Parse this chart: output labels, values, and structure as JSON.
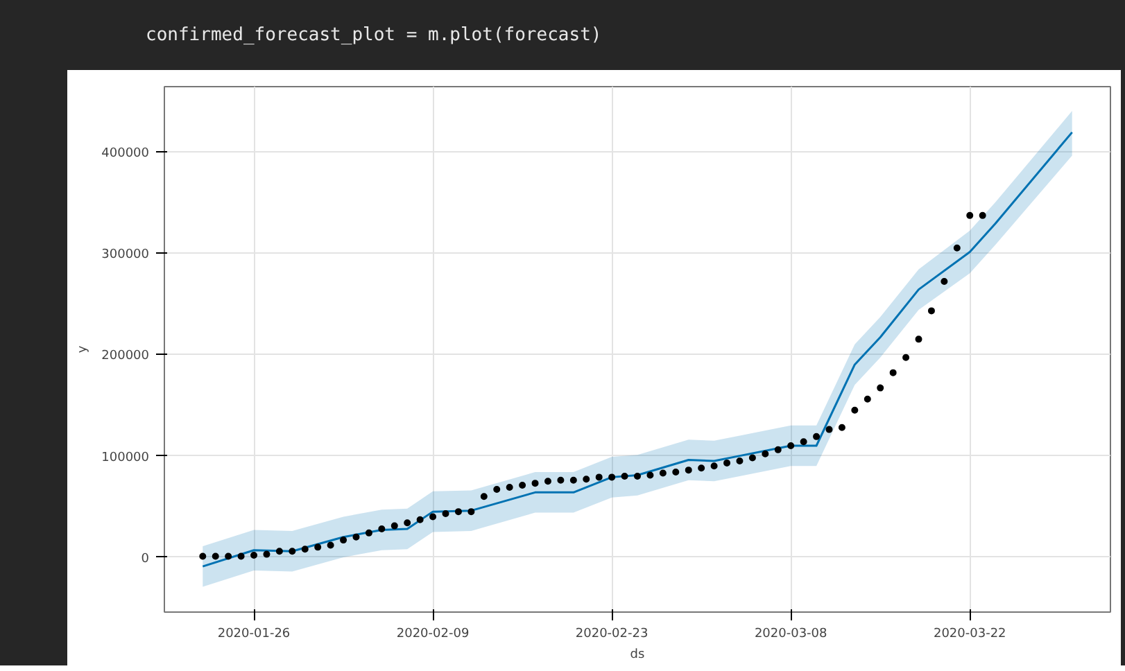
{
  "chart_data": {
    "type": "scatter",
    "annotations": [
      "confirmed_forecast_plot = m.plot(forecast)"
    ],
    "xlabel": "ds",
    "ylabel": "y",
    "xlim": [
      "2020-01-19",
      "2020-04-02"
    ],
    "ylim": [
      -54000,
      464000
    ],
    "xticks": [
      {
        "value": "2020-01-26",
        "label": "2020-01-26"
      },
      {
        "value": "2020-02-09",
        "label": "2020-02-09"
      },
      {
        "value": "2020-02-23",
        "label": "2020-02-23"
      },
      {
        "value": "2020-03-08",
        "label": "2020-03-08"
      },
      {
        "value": "2020-03-22",
        "label": "2020-03-22"
      }
    ],
    "yticks": [
      0,
      100000,
      200000,
      300000,
      400000
    ],
    "grid": true,
    "series": [
      {
        "type": "line",
        "color": "#0072b2",
        "marker": "none",
        "line_style": "solid",
        "x": [
          "2020-01-22",
          "2020-01-26",
          "2020-01-29",
          "2020-02-02",
          "2020-02-05",
          "2020-02-07",
          "2020-02-09",
          "2020-02-12",
          "2020-02-17",
          "2020-02-20",
          "2020-02-23",
          "2020-02-25",
          "2020-02-29",
          "2020-03-02",
          "2020-03-04",
          "2020-03-08",
          "2020-03-10",
          "2020-03-13",
          "2020-03-15",
          "2020-03-18",
          "2020-03-22",
          "2020-03-24",
          "2020-03-30"
        ],
        "values": [
          -9000,
          7000,
          6000,
          20000,
          27000,
          28000,
          45000,
          46000,
          64000,
          64000,
          79000,
          81000,
          96000,
          95000,
          100000,
          110000,
          110000,
          190000,
          217000,
          264000,
          301000,
          329000,
          419000
        ],
        "lower": [
          -29000,
          -13000,
          -14000,
          0,
          7000,
          8000,
          25000,
          26000,
          44000,
          44000,
          59000,
          61000,
          76000,
          75000,
          80000,
          90000,
          90000,
          170000,
          197000,
          244000,
          280000,
          308000,
          396000
        ],
        "upper": [
          11000,
          27000,
          26000,
          40000,
          47000,
          48000,
          65000,
          66000,
          84000,
          84000,
          99000,
          101000,
          116000,
          115000,
          120000,
          130000,
          130000,
          210000,
          237000,
          284000,
          322000,
          350000,
          440000
        ]
      },
      {
        "color": "#000000",
        "marker": "circle",
        "x": [
          "2020-01-22",
          "2020-01-23",
          "2020-01-24",
          "2020-01-25",
          "2020-01-26",
          "2020-01-27",
          "2020-01-28",
          "2020-01-29",
          "2020-01-30",
          "2020-01-31",
          "2020-02-01",
          "2020-02-02",
          "2020-02-03",
          "2020-02-04",
          "2020-02-05",
          "2020-02-06",
          "2020-02-07",
          "2020-02-08",
          "2020-02-09",
          "2020-02-10",
          "2020-02-11",
          "2020-02-12",
          "2020-02-13",
          "2020-02-14",
          "2020-02-15",
          "2020-02-16",
          "2020-02-17",
          "2020-02-18",
          "2020-02-19",
          "2020-02-20",
          "2020-02-21",
          "2020-02-22",
          "2020-02-23",
          "2020-02-24",
          "2020-02-25",
          "2020-02-26",
          "2020-02-27",
          "2020-02-28",
          "2020-02-29",
          "2020-03-01",
          "2020-03-02",
          "2020-03-03",
          "2020-03-04",
          "2020-03-05",
          "2020-03-06",
          "2020-03-07",
          "2020-03-08",
          "2020-03-09",
          "2020-03-10",
          "2020-03-11",
          "2020-03-12",
          "2020-03-13",
          "2020-03-14",
          "2020-03-15",
          "2020-03-16",
          "2020-03-17",
          "2020-03-18",
          "2020-03-19",
          "2020-03-20",
          "2020-03-21",
          "2020-03-22",
          "2020-03-23"
        ],
        "values": [
          1000,
          1000,
          1000,
          1000,
          2000,
          3000,
          6000,
          6000,
          8000,
          10000,
          12000,
          17000,
          20000,
          24000,
          28000,
          31000,
          34000,
          37000,
          40000,
          43000,
          45000,
          45000,
          60000,
          67000,
          69000,
          71000,
          73000,
          75000,
          76000,
          76000,
          77000,
          79000,
          79000,
          80000,
          80000,
          81000,
          83000,
          84000,
          86000,
          88000,
          90000,
          93000,
          95000,
          98000,
          102000,
          106000,
          110000,
          114000,
          119000,
          126000,
          128000,
          145000,
          156000,
          167000,
          182000,
          197000,
          215000,
          243000,
          272000,
          305000,
          337000,
          337000
        ]
      }
    ]
  }
}
